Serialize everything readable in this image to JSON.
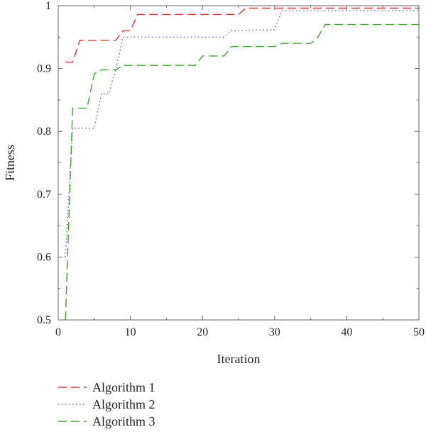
{
  "chart_data": {
    "type": "line",
    "title": "",
    "xlabel": "Iteration",
    "ylabel": "Fitness",
    "xlim": [
      0,
      50
    ],
    "ylim": [
      0.5,
      1
    ],
    "xticks": [
      "0",
      "10",
      "20",
      "30",
      "40",
      "50"
    ],
    "yticks": [
      "0.5",
      "0.6",
      "0.7",
      "0.8",
      "0.9",
      "1"
    ],
    "grid": false,
    "legend_position": "bottom-left",
    "series": [
      {
        "name": "Algorithm 1",
        "color": "#e03030",
        "dash": "dashed",
        "x": [
          1,
          2,
          3,
          8,
          9,
          10,
          11,
          25,
          26,
          50
        ],
        "y": [
          0.91,
          0.91,
          0.945,
          0.945,
          0.96,
          0.96,
          0.986,
          0.986,
          0.996,
          0.996
        ]
      },
      {
        "name": "Algorithm 2",
        "color": "#5a5ac8",
        "dash": "dotted",
        "x": [
          1,
          2,
          5,
          6,
          7,
          8,
          9,
          23,
          24,
          30,
          31,
          50
        ],
        "y": [
          0.6,
          0.805,
          0.805,
          0.86,
          0.86,
          0.9,
          0.95,
          0.95,
          0.96,
          0.962,
          0.992,
          0.992
        ]
      },
      {
        "name": "Algorithm 3",
        "color": "#3aaa2a",
        "dash": "dashed",
        "x": [
          1,
          2,
          4,
          5,
          6,
          8,
          9,
          19,
          20,
          23,
          24,
          30,
          31,
          35,
          36,
          37,
          50
        ],
        "y": [
          0.5,
          0.837,
          0.837,
          0.892,
          0.898,
          0.898,
          0.905,
          0.905,
          0.92,
          0.92,
          0.935,
          0.935,
          0.94,
          0.94,
          0.95,
          0.97,
          0.97
        ]
      }
    ]
  }
}
